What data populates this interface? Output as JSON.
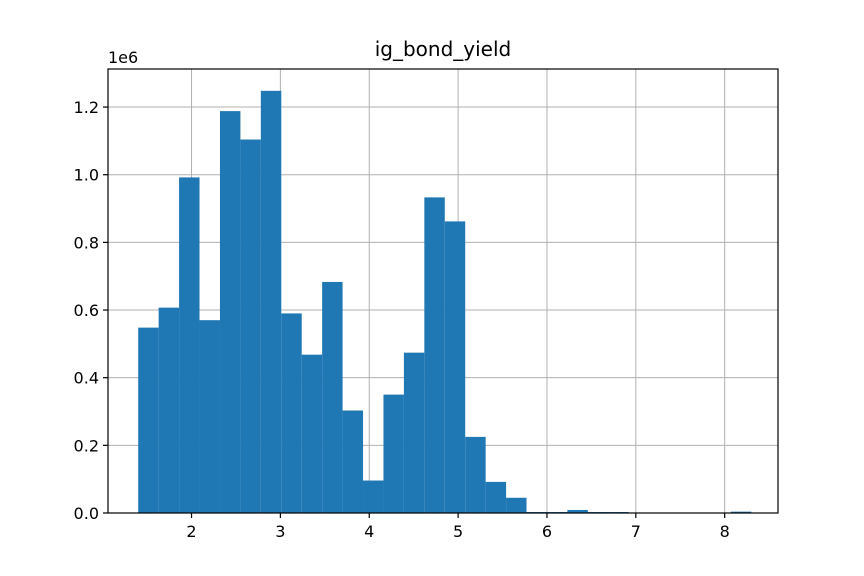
{
  "chart_data": {
    "type": "bar",
    "title": "ig_bond_yield",
    "xlabel": "",
    "ylabel": "",
    "y_offset_label": "1e6",
    "grid": true,
    "bar_color": "#1f77b4",
    "xlim": [
      1.06,
      8.6
    ],
    "ylim": [
      0,
      1312500
    ],
    "x_ticks": [
      2,
      3,
      4,
      5,
      6,
      7,
      8
    ],
    "x_tick_labels": [
      "2",
      "3",
      "4",
      "5",
      "6",
      "7",
      "8"
    ],
    "y_ticks": [
      0,
      200000,
      400000,
      600000,
      800000,
      1000000,
      1200000
    ],
    "y_tick_labels": [
      "0.0",
      "0.2",
      "0.4",
      "0.6",
      "0.8",
      "1.0",
      "1.2"
    ],
    "bins": [
      {
        "x0": 1.4,
        "x1": 1.63,
        "count": 548000
      },
      {
        "x0": 1.63,
        "x1": 1.86,
        "count": 607000
      },
      {
        "x0": 1.86,
        "x1": 2.09,
        "count": 992000
      },
      {
        "x0": 2.09,
        "x1": 2.32,
        "count": 570000
      },
      {
        "x0": 2.32,
        "x1": 2.55,
        "count": 1188000
      },
      {
        "x0": 2.55,
        "x1": 2.78,
        "count": 1104000
      },
      {
        "x0": 2.78,
        "x1": 3.01,
        "count": 1248000
      },
      {
        "x0": 3.01,
        "x1": 3.24,
        "count": 590000
      },
      {
        "x0": 3.24,
        "x1": 3.47,
        "count": 468000
      },
      {
        "x0": 3.47,
        "x1": 3.7,
        "count": 683000
      },
      {
        "x0": 3.7,
        "x1": 3.93,
        "count": 303000
      },
      {
        "x0": 3.93,
        "x1": 4.16,
        "count": 96000
      },
      {
        "x0": 4.16,
        "x1": 4.39,
        "count": 350000
      },
      {
        "x0": 4.39,
        "x1": 4.62,
        "count": 474000
      },
      {
        "x0": 4.62,
        "x1": 4.85,
        "count": 933000
      },
      {
        "x0": 4.85,
        "x1": 5.08,
        "count": 862000
      },
      {
        "x0": 5.08,
        "x1": 5.31,
        "count": 225000
      },
      {
        "x0": 5.31,
        "x1": 5.54,
        "count": 92000
      },
      {
        "x0": 5.54,
        "x1": 5.77,
        "count": 45000
      },
      {
        "x0": 5.77,
        "x1": 6.0,
        "count": 3000
      },
      {
        "x0": 6.0,
        "x1": 6.23,
        "count": 3000
      },
      {
        "x0": 6.23,
        "x1": 6.46,
        "count": 9000
      },
      {
        "x0": 6.46,
        "x1": 6.69,
        "count": 3000
      },
      {
        "x0": 6.69,
        "x1": 6.92,
        "count": 3000
      },
      {
        "x0": 6.92,
        "x1": 7.15,
        "count": 1000
      },
      {
        "x0": 7.15,
        "x1": 7.38,
        "count": 1000
      },
      {
        "x0": 7.38,
        "x1": 7.61,
        "count": 1000
      },
      {
        "x0": 7.61,
        "x1": 7.84,
        "count": 1000
      },
      {
        "x0": 7.84,
        "x1": 8.07,
        "count": 1000
      },
      {
        "x0": 8.07,
        "x1": 8.3,
        "count": 4000
      }
    ]
  }
}
